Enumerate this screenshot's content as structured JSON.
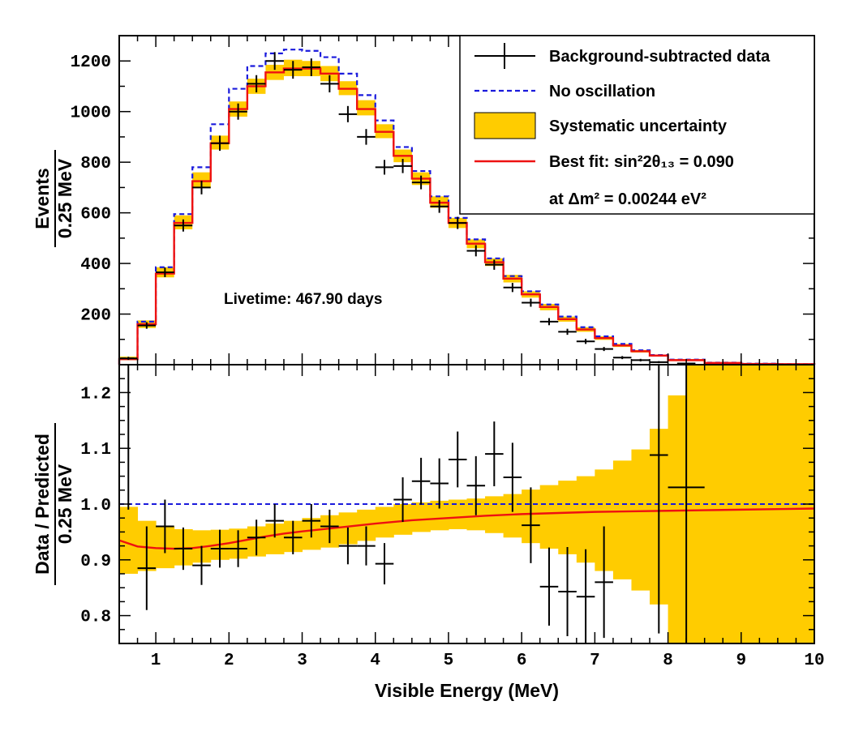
{
  "chart_data": [
    {
      "type": "histogram",
      "ylabel_top": "Events",
      "ylabel_bottom": "0.25 MeV",
      "xlim": [
        0.5,
        10
      ],
      "ylim": [
        0,
        1300
      ],
      "yticks": [
        200,
        400,
        600,
        800,
        1000,
        1200
      ],
      "annotation": "Livetime: 467.90 days",
      "bin_edges": [
        0.5,
        0.75,
        1.0,
        1.25,
        1.5,
        1.75,
        2.0,
        2.25,
        2.5,
        2.75,
        3.0,
        3.25,
        3.5,
        3.75,
        4.0,
        4.25,
        4.5,
        4.75,
        5.0,
        5.25,
        5.5,
        5.75,
        6.0,
        6.25,
        6.5,
        6.75,
        7.0,
        7.25,
        7.5,
        7.75,
        8.0,
        8.5,
        9.0,
        9.5,
        10.0
      ],
      "series": [
        {
          "name": "No oscillation",
          "color": "#1a1adc",
          "style": "dashed-step",
          "values": [
            25,
            170,
            385,
            595,
            780,
            950,
            1090,
            1180,
            1230,
            1245,
            1240,
            1215,
            1150,
            1065,
            965,
            860,
            765,
            665,
            580,
            495,
            420,
            350,
            290,
            238,
            190,
            148,
            112,
            82,
            57,
            38,
            20,
            8,
            4,
            2
          ]
        },
        {
          "name": "Systematic uncertainty",
          "color": "#ffcc00",
          "style": "band",
          "low": [
            18,
            145,
            345,
            535,
            700,
            850,
            980,
            1070,
            1125,
            1140,
            1140,
            1120,
            1065,
            985,
            895,
            800,
            710,
            620,
            540,
            460,
            390,
            325,
            265,
            215,
            170,
            130,
            98,
            70,
            48,
            32,
            14,
            5,
            2,
            1
          ],
          "high": [
            32,
            175,
            385,
            590,
            760,
            905,
            1040,
            1130,
            1185,
            1205,
            1200,
            1180,
            1120,
            1045,
            950,
            850,
            760,
            665,
            580,
            495,
            420,
            355,
            290,
            240,
            190,
            148,
            112,
            82,
            58,
            40,
            22,
            10,
            5,
            3
          ]
        },
        {
          "name": "Best fit: sin²2θ₁₃ = 0.090",
          "color": "#ee1111",
          "style": "solid-step",
          "values": [
            22,
            160,
            360,
            560,
            725,
            875,
            1010,
            1100,
            1155,
            1170,
            1170,
            1150,
            1090,
            1010,
            920,
            825,
            735,
            640,
            560,
            478,
            405,
            340,
            278,
            228,
            180,
            139,
            105,
            76,
            53,
            36,
            18,
            7,
            3,
            2
          ]
        },
        {
          "name": "Background-subtracted data",
          "color": "#000000",
          "style": "points",
          "x": [
            0.625,
            0.875,
            1.125,
            1.375,
            1.625,
            1.875,
            2.125,
            2.375,
            2.625,
            2.875,
            3.125,
            3.375,
            3.625,
            3.875,
            4.125,
            4.375,
            4.625,
            4.875,
            5.125,
            5.375,
            5.625,
            5.875,
            6.125,
            6.375,
            6.625,
            6.875,
            7.125,
            7.375,
            7.625,
            7.875,
            8.25
          ],
          "y": [
            25,
            155,
            365,
            550,
            700,
            875,
            1000,
            1110,
            1200,
            1165,
            1175,
            1110,
            990,
            900,
            780,
            785,
            720,
            625,
            560,
            450,
            395,
            305,
            245,
            170,
            130,
            92,
            62,
            28,
            18,
            10,
            5
          ],
          "err": [
            6,
            13,
            19,
            24,
            27,
            30,
            32,
            34,
            35,
            35,
            35,
            34,
            32,
            31,
            29,
            28,
            27,
            25,
            24,
            22,
            20,
            18,
            16,
            14,
            12,
            10,
            8,
            6,
            5,
            4,
            3
          ]
        }
      ],
      "legend": [
        {
          "label": "Background-subtracted data",
          "kind": "points"
        },
        {
          "label": "No oscillation",
          "kind": "dashed"
        },
        {
          "label": "Systematic uncertainty",
          "kind": "band"
        },
        {
          "label": "Best fit: sin²2θ₁₃ = 0.090",
          "kind": "line"
        },
        {
          "label": "at  Δm² = 0.00244 eV²",
          "kind": "none"
        }
      ],
      "legend_placement": "top-right"
    },
    {
      "type": "ratio",
      "ylabel_top": "Data / Predicted",
      "ylabel_bottom": "0.25 MeV",
      "xlabel": "Visible Energy (MeV)",
      "xlim": [
        0.5,
        10
      ],
      "ylim": [
        0.75,
        1.25
      ],
      "yticks": [
        0.8,
        0.9,
        1.0,
        1.1,
        1.2
      ],
      "xticks": [
        1,
        2,
        3,
        4,
        5,
        6,
        7,
        8,
        9,
        10
      ],
      "reference_line": 1.0,
      "band_edges": [
        0.5,
        0.75,
        1.0,
        1.25,
        1.5,
        1.75,
        2.0,
        2.25,
        2.5,
        2.75,
        3.0,
        3.25,
        3.5,
        3.75,
        4.0,
        4.25,
        4.5,
        4.75,
        5.0,
        5.25,
        5.5,
        5.75,
        6.0,
        6.25,
        6.5,
        6.75,
        7.0,
        7.25,
        7.5,
        7.75,
        8.0,
        8.25,
        8.5,
        8.75,
        9.0,
        9.25,
        9.5,
        9.75,
        10.0
      ],
      "band_low": [
        0.875,
        0.88,
        0.885,
        0.89,
        0.895,
        0.9,
        0.902,
        0.906,
        0.91,
        0.914,
        0.918,
        0.922,
        0.928,
        0.934,
        0.94,
        0.945,
        0.95,
        0.953,
        0.955,
        0.953,
        0.948,
        0.94,
        0.93,
        0.92,
        0.91,
        0.895,
        0.88,
        0.865,
        0.845,
        0.82,
        0.75,
        0.75,
        0.75,
        0.75,
        0.75,
        0.75,
        0.75,
        0.75
      ],
      "band_high": [
        0.995,
        0.97,
        0.96,
        0.955,
        0.953,
        0.954,
        0.956,
        0.96,
        0.965,
        0.97,
        0.975,
        0.98,
        0.985,
        0.99,
        0.995,
        1.0,
        1.003,
        1.006,
        1.008,
        1.01,
        1.014,
        1.018,
        1.026,
        1.034,
        1.042,
        1.05,
        1.062,
        1.078,
        1.098,
        1.135,
        1.195,
        1.25,
        1.25,
        1.25,
        1.25,
        1.25,
        1.25,
        1.25
      ],
      "fit": {
        "x": [
          0.5,
          0.75,
          1.0,
          1.25,
          1.5,
          1.75,
          2.0,
          2.25,
          2.5,
          2.75,
          3.0,
          3.5,
          4.0,
          4.5,
          5.0,
          5.5,
          6.0,
          6.5,
          7.0,
          7.5,
          8.0,
          8.5,
          9.0,
          9.5,
          10.0
        ],
        "y": [
          0.935,
          0.924,
          0.921,
          0.92,
          0.921,
          0.925,
          0.93,
          0.936,
          0.942,
          0.947,
          0.951,
          0.958,
          0.965,
          0.971,
          0.975,
          0.979,
          0.982,
          0.984,
          0.986,
          0.987,
          0.988,
          0.989,
          0.99,
          0.991,
          0.992
        ]
      },
      "points": {
        "x": [
          0.625,
          0.875,
          1.125,
          1.375,
          1.625,
          1.875,
          2.125,
          2.375,
          2.625,
          2.875,
          3.125,
          3.375,
          3.625,
          3.875,
          4.125,
          4.375,
          4.625,
          4.875,
          5.125,
          5.375,
          5.625,
          5.875,
          6.125,
          6.375,
          6.625,
          6.875,
          7.125,
          7.875,
          8.25
        ],
        "y": [
          1.25,
          0.885,
          0.96,
          0.92,
          0.89,
          0.92,
          0.92,
          0.94,
          0.97,
          0.94,
          0.97,
          0.96,
          0.925,
          0.925,
          0.893,
          1.008,
          1.041,
          1.037,
          1.08,
          1.033,
          1.09,
          1.048,
          0.962,
          0.852,
          0.843,
          0.834,
          0.86,
          1.088,
          1.03
        ],
        "err": [
          0.26,
          0.075,
          0.048,
          0.038,
          0.035,
          0.034,
          0.033,
          0.032,
          0.03,
          0.03,
          0.03,
          0.03,
          0.033,
          0.035,
          0.037,
          0.04,
          0.042,
          0.045,
          0.05,
          0.053,
          0.058,
          0.062,
          0.068,
          0.07,
          0.08,
          0.085,
          0.1,
          0.32,
          0.4
        ],
        "xerr": [
          0.125,
          0.125,
          0.125,
          0.125,
          0.125,
          0.125,
          0.125,
          0.125,
          0.125,
          0.125,
          0.125,
          0.125,
          0.125,
          0.125,
          0.125,
          0.125,
          0.125,
          0.125,
          0.125,
          0.125,
          0.125,
          0.125,
          0.125,
          0.125,
          0.125,
          0.125,
          0.125,
          0.125,
          0.25
        ]
      }
    }
  ]
}
